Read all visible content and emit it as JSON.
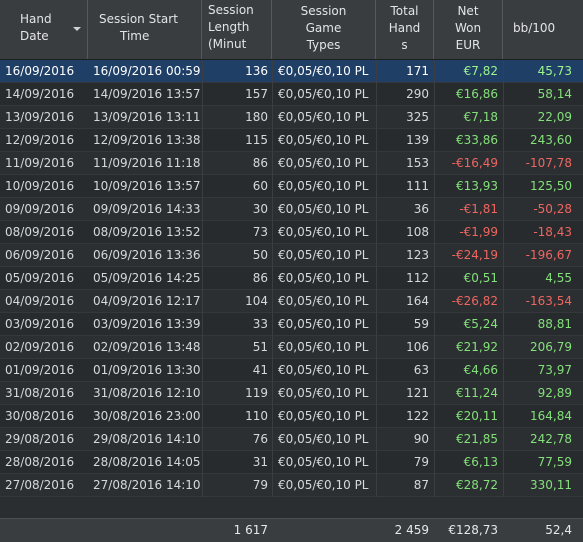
{
  "columns": [
    {
      "line1": "Hand",
      "line2": "Date",
      "line3": ""
    },
    {
      "line1": "Session Start",
      "line2": "Time",
      "line3": ""
    },
    {
      "line1": "Session",
      "line2": "Length",
      "line3": "(Minut"
    },
    {
      "line1": "Session",
      "line2": "Game",
      "line3": "Types"
    },
    {
      "line1": "Total",
      "line2": "Hand",
      "line3": "s"
    },
    {
      "line1": "Net",
      "line2": "Won",
      "line3": "EUR"
    },
    {
      "line1": "bb/100",
      "line2": "",
      "line3": ""
    }
  ],
  "sort_icon": "sort-descending-icon",
  "colors": {
    "positive": "#84e07a",
    "negative": "#ee6660",
    "selected_row": "#1f3f66"
  },
  "rows": [
    {
      "date": "16/09/2016",
      "start": "16/09/2016 00:59",
      "length": "136",
      "game": "€0,05/€0,10 PL",
      "hands": "171",
      "won": "€7,82",
      "bb": "45,73",
      "sign": "pos",
      "selected": true
    },
    {
      "date": "14/09/2016",
      "start": "14/09/2016 13:57",
      "length": "157",
      "game": "€0,05/€0,10 PL",
      "hands": "290",
      "won": "€16,86",
      "bb": "58,14",
      "sign": "pos"
    },
    {
      "date": "13/09/2016",
      "start": "13/09/2016 13:11",
      "length": "180",
      "game": "€0,05/€0,10 PL",
      "hands": "325",
      "won": "€7,18",
      "bb": "22,09",
      "sign": "pos"
    },
    {
      "date": "12/09/2016",
      "start": "12/09/2016 13:38",
      "length": "115",
      "game": "€0,05/€0,10 PL",
      "hands": "139",
      "won": "€33,86",
      "bb": "243,60",
      "sign": "pos"
    },
    {
      "date": "11/09/2016",
      "start": "11/09/2016 11:18",
      "length": "86",
      "game": "€0,05/€0,10 PL",
      "hands": "153",
      "won": "-€16,49",
      "bb": "-107,78",
      "sign": "neg"
    },
    {
      "date": "10/09/2016",
      "start": "10/09/2016 13:57",
      "length": "60",
      "game": "€0,05/€0,10 PL",
      "hands": "111",
      "won": "€13,93",
      "bb": "125,50",
      "sign": "pos"
    },
    {
      "date": "09/09/2016",
      "start": "09/09/2016 14:33",
      "length": "30",
      "game": "€0,05/€0,10 PL",
      "hands": "36",
      "won": "-€1,81",
      "bb": "-50,28",
      "sign": "neg"
    },
    {
      "date": "08/09/2016",
      "start": "08/09/2016 13:52",
      "length": "73",
      "game": "€0,05/€0,10 PL",
      "hands": "108",
      "won": "-€1,99",
      "bb": "-18,43",
      "sign": "neg"
    },
    {
      "date": "06/09/2016",
      "start": "06/09/2016 13:36",
      "length": "50",
      "game": "€0,05/€0,10 PL",
      "hands": "123",
      "won": "-€24,19",
      "bb": "-196,67",
      "sign": "neg"
    },
    {
      "date": "05/09/2016",
      "start": "05/09/2016 14:25",
      "length": "86",
      "game": "€0,05/€0,10 PL",
      "hands": "112",
      "won": "€0,51",
      "bb": "4,55",
      "sign": "pos"
    },
    {
      "date": "04/09/2016",
      "start": "04/09/2016 12:17",
      "length": "104",
      "game": "€0,05/€0,10 PL",
      "hands": "164",
      "won": "-€26,82",
      "bb": "-163,54",
      "sign": "neg"
    },
    {
      "date": "03/09/2016",
      "start": "03/09/2016 13:39",
      "length": "33",
      "game": "€0,05/€0,10 PL",
      "hands": "59",
      "won": "€5,24",
      "bb": "88,81",
      "sign": "pos"
    },
    {
      "date": "02/09/2016",
      "start": "02/09/2016 13:48",
      "length": "51",
      "game": "€0,05/€0,10 PL",
      "hands": "106",
      "won": "€21,92",
      "bb": "206,79",
      "sign": "pos"
    },
    {
      "date": "01/09/2016",
      "start": "01/09/2016 13:30",
      "length": "41",
      "game": "€0,05/€0,10 PL",
      "hands": "63",
      "won": "€4,66",
      "bb": "73,97",
      "sign": "pos"
    },
    {
      "date": "31/08/2016",
      "start": "31/08/2016 12:10",
      "length": "119",
      "game": "€0,05/€0,10 PL",
      "hands": "121",
      "won": "€11,24",
      "bb": "92,89",
      "sign": "pos"
    },
    {
      "date": "30/08/2016",
      "start": "30/08/2016 23:00",
      "length": "110",
      "game": "€0,05/€0,10 PL",
      "hands": "122",
      "won": "€20,11",
      "bb": "164,84",
      "sign": "pos"
    },
    {
      "date": "29/08/2016",
      "start": "29/08/2016 14:10",
      "length": "76",
      "game": "€0,05/€0,10 PL",
      "hands": "90",
      "won": "€21,85",
      "bb": "242,78",
      "sign": "pos"
    },
    {
      "date": "28/08/2016",
      "start": "28/08/2016 14:05",
      "length": "31",
      "game": "€0,05/€0,10 PL",
      "hands": "79",
      "won": "€6,13",
      "bb": "77,59",
      "sign": "pos"
    },
    {
      "date": "27/08/2016",
      "start": "27/08/2016 14:10",
      "length": "79",
      "game": "€0,05/€0,10 PL",
      "hands": "87",
      "won": "€28,72",
      "bb": "330,11",
      "sign": "pos"
    }
  ],
  "totals": {
    "length": "1 617",
    "hands": "2 459",
    "won": "€128,73",
    "bb": "52,4"
  }
}
